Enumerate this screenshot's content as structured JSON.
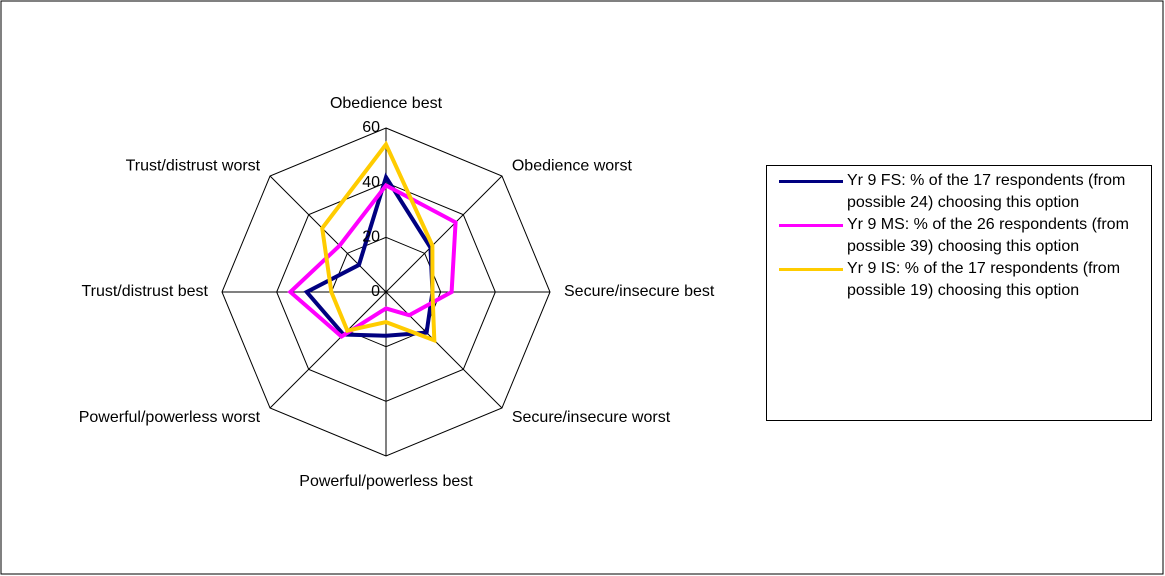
{
  "chart_data": {
    "type": "radar",
    "categories": [
      "Obedience best",
      "Obedience worst",
      "Secure/insecure best",
      "Secure/insecure worst",
      "Powerful/powerless best",
      "Powerful/powerless worst",
      "Trust/distrust best",
      "Trust/distrust worst"
    ],
    "series": [
      {
        "name": "Yr 9 FS: % of  the 17 respondents (from possible 24) choosing this option",
        "color": "#000080",
        "values": [
          42,
          23,
          17,
          21,
          16,
          22,
          29,
          14
        ]
      },
      {
        "name": "Yr 9 MS: % of  the 26 respondents (from possible 39) choosing this option",
        "color": "#ff00ff",
        "values": [
          39,
          36,
          24,
          12,
          6,
          23,
          35,
          24
        ]
      },
      {
        "name": "Yr 9 IS: % of the 17  respondents (from possible 19) choosing this option",
        "color": "#ffcc00",
        "values": [
          54,
          24,
          17,
          25,
          11,
          20,
          20,
          33
        ]
      }
    ],
    "rlim": [
      0,
      60
    ],
    "rticks": [
      0,
      20,
      40,
      60
    ],
    "grid": true,
    "legend": "right"
  }
}
